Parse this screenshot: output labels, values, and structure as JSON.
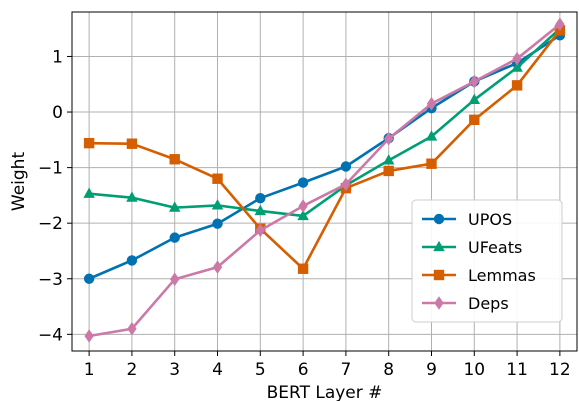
{
  "chart_data": {
    "type": "line",
    "xlabel": "BERT Layer #",
    "ylabel": "Weight",
    "x": [
      1,
      2,
      3,
      4,
      5,
      6,
      7,
      8,
      9,
      10,
      11,
      12
    ],
    "xlim": [
      0.6,
      12.4
    ],
    "ylim": [
      -4.3,
      1.8
    ],
    "yticks": [
      -4,
      -3,
      -2,
      -1,
      0,
      1
    ],
    "grid": true,
    "legend_position": "lower-right",
    "series": [
      {
        "name": "UPOS",
        "color": "#0072B2",
        "marker": "circle",
        "values": [
          -3.0,
          -2.67,
          -2.26,
          -2.01,
          -1.55,
          -1.27,
          -0.98,
          -0.47,
          0.07,
          0.55,
          0.88,
          1.38
        ]
      },
      {
        "name": "UFeats",
        "color": "#009E73",
        "marker": "triangle",
        "values": [
          -1.47,
          -1.54,
          -1.72,
          -1.68,
          -1.78,
          -1.87,
          -1.32,
          -0.87,
          -0.44,
          0.22,
          0.8,
          1.5
        ]
      },
      {
        "name": "Lemmas",
        "color": "#D55E00",
        "marker": "square",
        "values": [
          -0.56,
          -0.57,
          -0.85,
          -1.2,
          -2.1,
          -2.82,
          -1.37,
          -1.06,
          -0.93,
          -0.14,
          0.48,
          1.47
        ]
      },
      {
        "name": "Deps",
        "color": "#CC79A7",
        "marker": "diamond",
        "values": [
          -4.03,
          -3.9,
          -3.01,
          -2.79,
          -2.13,
          -1.69,
          -1.3,
          -0.48,
          0.15,
          0.55,
          0.96,
          1.58
        ]
      }
    ]
  }
}
